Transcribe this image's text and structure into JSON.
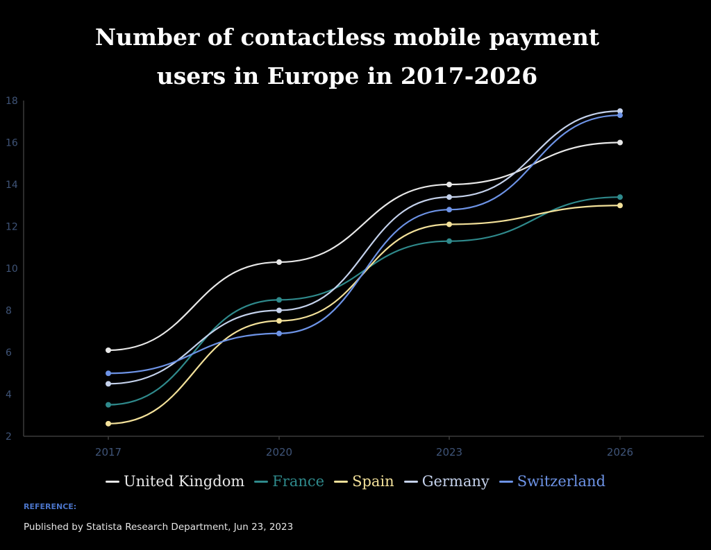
{
  "title_line1": "Number of contactless mobile payment",
  "title_line2": "users in Europe in 2017-2026",
  "reference_label": "REFERENCE:",
  "reference_text": "Published by Statista Research Department, Jun 23, 2023",
  "chart_data": {
    "type": "line",
    "title": "Number of contactless mobile payment users in Europe in 2017-2026",
    "categories": [
      "2017",
      "2020",
      "2023",
      "2026"
    ],
    "ylim": [
      2,
      18
    ],
    "yticks": [
      2,
      4,
      6,
      8,
      10,
      12,
      14,
      16,
      18
    ],
    "grid": false,
    "legend_position": "bottom",
    "series": [
      {
        "name": "United Kingdom",
        "color": "#e8e8e8",
        "values": [
          6.1,
          10.3,
          14.0,
          16.0
        ]
      },
      {
        "name": "France",
        "color": "#2f8a8c",
        "values": [
          3.5,
          8.5,
          11.3,
          13.4
        ]
      },
      {
        "name": "Spain",
        "color": "#f3e19a",
        "values": [
          2.6,
          7.5,
          12.1,
          13.0
        ]
      },
      {
        "name": "Germany",
        "color": "#c5d2ec",
        "values": [
          4.5,
          8.0,
          13.4,
          17.5
        ]
      },
      {
        "name": "Switzerland",
        "color": "#6d93e6",
        "values": [
          5.0,
          6.9,
          12.8,
          17.3
        ]
      }
    ]
  }
}
